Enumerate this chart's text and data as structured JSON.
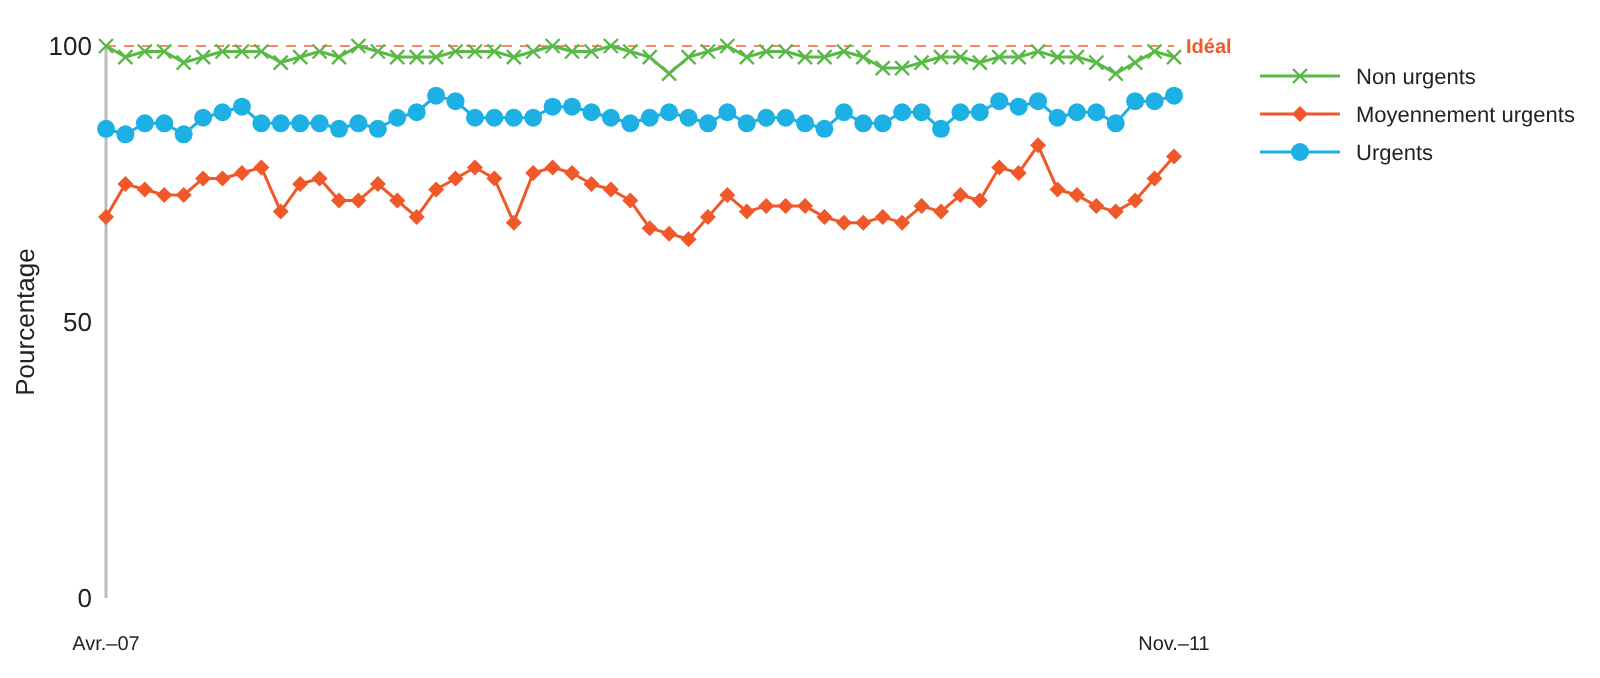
{
  "chart_data": {
    "type": "line",
    "ylabel": "Pourcentage",
    "categories": [
      "Avr.–07",
      null,
      null,
      null,
      null,
      null,
      null,
      null,
      null,
      null,
      null,
      null,
      null,
      null,
      null,
      null,
      null,
      null,
      null,
      null,
      null,
      null,
      null,
      null,
      null,
      null,
      null,
      null,
      null,
      null,
      null,
      null,
      null,
      null,
      null,
      null,
      null,
      null,
      null,
      null,
      null,
      null,
      null,
      null,
      null,
      null,
      null,
      null,
      null,
      null,
      null,
      null,
      null,
      null,
      null,
      "Nov.–11"
    ],
    "ylim": [
      0,
      100
    ],
    "yticks": [
      0,
      50,
      100
    ],
    "grid": false,
    "legend": "right",
    "line_style": "solid",
    "ref_lines": [
      {
        "axis": "y",
        "value": 100,
        "label": "Idéal",
        "color": "#f0582a",
        "line_style": "dashed"
      }
    ],
    "series": [
      {
        "name": "Non urgents",
        "color": "#5ab946",
        "marker": "cross",
        "values": [
          100,
          98,
          99,
          99,
          97,
          98,
          99,
          99,
          99,
          97,
          98,
          99,
          98,
          100,
          99,
          98,
          98,
          98,
          99,
          99,
          99,
          98,
          99,
          100,
          99,
          99,
          100,
          99,
          98,
          95,
          98,
          99,
          100,
          98,
          99,
          99,
          98,
          98,
          99,
          98,
          96,
          96,
          97,
          98,
          98,
          97,
          98,
          98,
          99,
          98,
          98,
          97,
          95,
          97,
          99,
          98
        ]
      },
      {
        "name": "Moyennement urgents",
        "color": "#f0582a",
        "marker": "diamond",
        "values": [
          69,
          75,
          74,
          73,
          73,
          76,
          76,
          77,
          78,
          70,
          75,
          76,
          72,
          72,
          75,
          72,
          69,
          74,
          76,
          78,
          76,
          68,
          77,
          78,
          77,
          75,
          74,
          72,
          67,
          66,
          65,
          69,
          73,
          70,
          71,
          71,
          71,
          69,
          68,
          68,
          69,
          68,
          71,
          70,
          73,
          72,
          78,
          77,
          82,
          74,
          73,
          71,
          70,
          72,
          76,
          80
        ]
      },
      {
        "name": "Urgents",
        "color": "#1cb0e4",
        "marker": "circle",
        "values": [
          85,
          84,
          86,
          86,
          84,
          87,
          88,
          89,
          86,
          86,
          86,
          86,
          85,
          86,
          85,
          87,
          88,
          91,
          90,
          87,
          87,
          87,
          87,
          89,
          89,
          88,
          87,
          86,
          87,
          88,
          87,
          86,
          88,
          86,
          87,
          87,
          86,
          85,
          88,
          86,
          86,
          88,
          88,
          85,
          88,
          88,
          90,
          89,
          90,
          87,
          88,
          88,
          86,
          90,
          90,
          91
        ]
      }
    ]
  }
}
